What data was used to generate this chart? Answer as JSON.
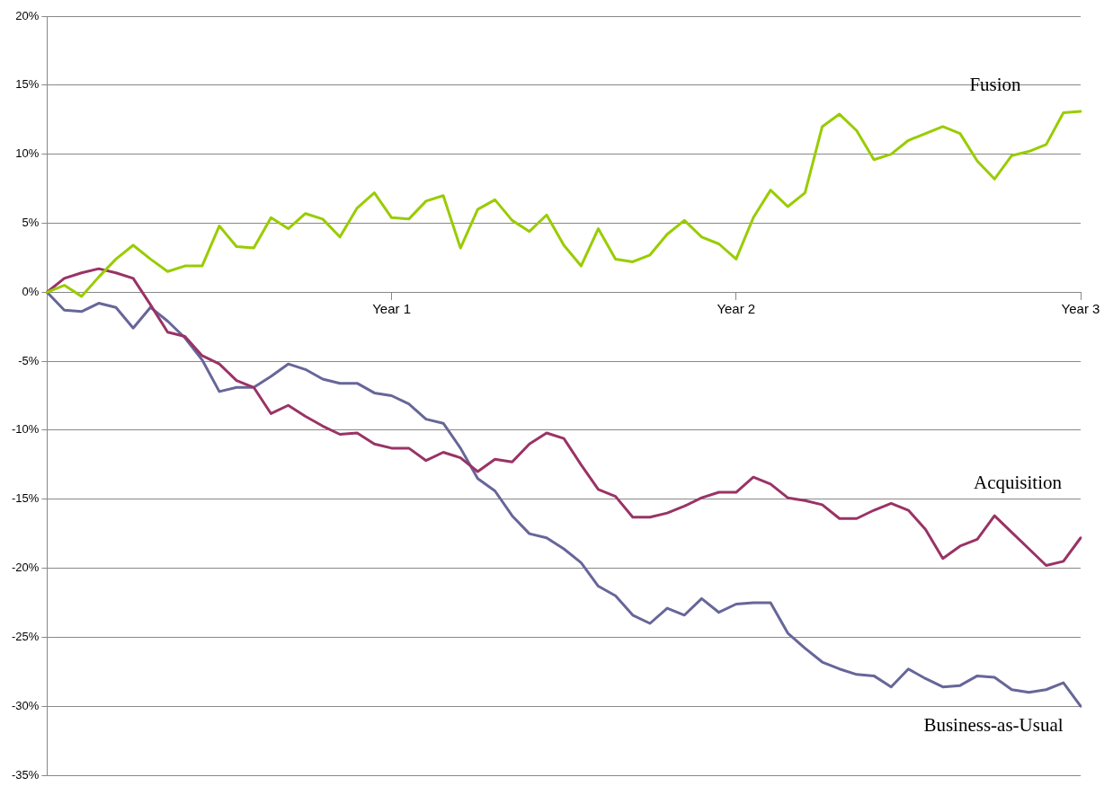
{
  "chart_data": {
    "type": "line",
    "categories": [
      null,
      null,
      null,
      null,
      null,
      null,
      null,
      null,
      null,
      null,
      null,
      null,
      null,
      null,
      null,
      null,
      null,
      null,
      null,
      null,
      "Year 1",
      null,
      null,
      null,
      null,
      null,
      null,
      null,
      null,
      null,
      null,
      null,
      null,
      null,
      null,
      null,
      null,
      null,
      null,
      null,
      "Year 2",
      null,
      null,
      null,
      null,
      null,
      null,
      null,
      null,
      null,
      null,
      null,
      null,
      null,
      null,
      null,
      null,
      null,
      null,
      null,
      "Year 3"
    ],
    "ylim": [
      -35,
      20
    ],
    "yticks": [
      {
        "value": -35,
        "label": "-35%"
      },
      {
        "value": -30,
        "label": "-30%"
      },
      {
        "value": -25,
        "label": "-25%"
      },
      {
        "value": -20,
        "label": "-20%"
      },
      {
        "value": -15,
        "label": "-15%"
      },
      {
        "value": -10,
        "label": "-10%"
      },
      {
        "value": -5,
        "label": "-5%"
      },
      {
        "value": 0,
        "label": "0%"
      },
      {
        "value": 5,
        "label": "5%"
      },
      {
        "value": 10,
        "label": "10%"
      },
      {
        "value": 15,
        "label": "15%"
      },
      {
        "value": 20,
        "label": "20%"
      }
    ],
    "grid": "y",
    "legend": false,
    "marker": "none",
    "line_style": "solid",
    "series": [
      {
        "name": "Fusion",
        "color": "#99cc00",
        "values": [
          0,
          0.5,
          -0.3,
          1.1,
          2.4,
          3.4,
          2.4,
          1.5,
          1.9,
          1.9,
          4.8,
          3.3,
          3.2,
          5.4,
          4.6,
          5.7,
          5.3,
          4.0,
          6.1,
          7.2,
          5.4,
          5.3,
          6.6,
          7.0,
          3.2,
          6.0,
          6.7,
          5.2,
          4.4,
          5.6,
          3.4,
          1.9,
          4.6,
          2.4,
          2.2,
          2.7,
          4.2,
          5.2,
          4.0,
          3.5,
          2.4,
          5.4,
          7.4,
          6.2,
          7.2,
          12.0,
          12.9,
          11.7,
          9.6,
          10.0,
          11.0,
          11.5,
          12.0,
          11.5,
          9.5,
          8.2,
          9.9,
          10.2,
          10.7,
          13.0,
          13.1
        ]
      },
      {
        "name": "Acquisition",
        "color": "#993366",
        "values": [
          0,
          1.0,
          1.4,
          1.7,
          1.4,
          1.0,
          -0.9,
          -2.9,
          -3.2,
          -4.6,
          -5.2,
          -6.4,
          -6.9,
          -8.8,
          -8.2,
          -9.0,
          -9.7,
          -10.3,
          -10.2,
          -11.0,
          -11.3,
          -11.3,
          -12.2,
          -11.6,
          -12.0,
          -13.0,
          -12.1,
          -12.3,
          -11.0,
          -10.2,
          -10.6,
          -12.5,
          -14.3,
          -14.8,
          -16.3,
          -16.3,
          -16.0,
          -15.5,
          -14.9,
          -14.5,
          -14.5,
          -13.4,
          -13.9,
          -14.9,
          -15.1,
          -15.4,
          -16.4,
          -16.4,
          -15.8,
          -15.3,
          -15.8,
          -17.2,
          -19.3,
          -18.4,
          -17.9,
          -16.2,
          -17.4,
          -18.6,
          -19.8,
          -19.5,
          -17.8
        ]
      },
      {
        "name": "Business-as-Usual",
        "color": "#666699",
        "values": [
          0,
          -1.3,
          -1.4,
          -0.8,
          -1.1,
          -2.6,
          -1.1,
          -2.1,
          -3.3,
          -4.9,
          -7.2,
          -6.9,
          -6.9,
          -6.1,
          -5.2,
          -5.6,
          -6.3,
          -6.6,
          -6.6,
          -7.3,
          -7.5,
          -8.1,
          -9.2,
          -9.5,
          -11.3,
          -13.5,
          -14.4,
          -16.2,
          -17.5,
          -17.8,
          -18.6,
          -19.6,
          -21.3,
          -22.0,
          -23.4,
          -24.0,
          -22.9,
          -23.4,
          -22.2,
          -23.2,
          -22.6,
          -22.5,
          -22.5,
          -24.7,
          -25.8,
          -26.8,
          -27.3,
          -27.7,
          -27.8,
          -28.6,
          -27.3,
          -28.0,
          -28.6,
          -28.5,
          -27.8,
          -27.9,
          -28.8,
          -29.0,
          -28.8,
          -28.3,
          -30.0
        ]
      }
    ]
  }
}
